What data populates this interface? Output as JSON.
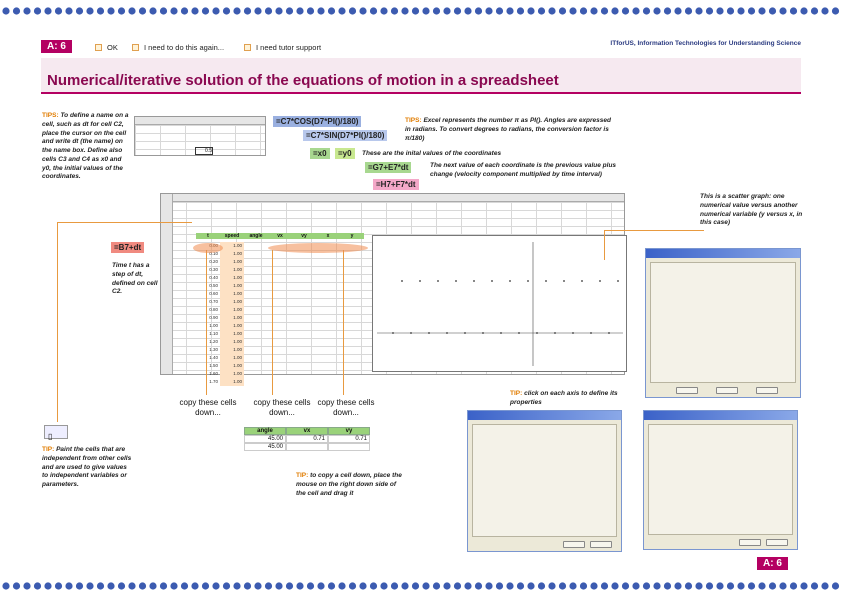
{
  "header": {
    "badge": "A: 6",
    "check_ok": "OK",
    "check_again": "I need to do this again...",
    "check_tutor": "I need tutor support",
    "brand": "ITforUS, Information Technologies for Understanding Science"
  },
  "title": "Numerical/iterative solution of the equations of motion in a spreadsheet",
  "tips": {
    "name_tip_label": "TIPS:",
    "name_tip": "To define a name on a cell, such as dt for cell C2, place the cursor on the cell and write dt (the name) on the name box. Define also cells C3 and C4 as x0 and y0, the initial values of the coordinates.",
    "pi_tip_label": "TIPS:",
    "pi_tip": "Excel represents the number π as PI(). Angles are expressed in radians. To convert degrees to radians, the conversion factor is π/180)",
    "initial_values": "These are the inital values of the coordinates",
    "next_value": "The next value of each coordinate is the previous value plus change (velocity component multiplied by time interval)",
    "time_step": "Time t has a step of dt, defined on cell C2.",
    "scatter": "This is a scatter graph: one numerical value versus another numerical variable (y versus x, in this case)",
    "axis_tip_label": "TIP:",
    "axis_tip": "click on each axis to define its properties",
    "paint_tip_label": "TIP:",
    "paint_tip": "Paint the cells that are independent from other cells and are used to give values to independent variables or parameters.",
    "copy_tip_label": "TIP:",
    "copy_tip": "to copy a cell down, place the mouse on the right down side of the cell and drag it"
  },
  "formulas": {
    "vx": "=C7*COS(D7*PI()/180)",
    "vy": "=C7*SIN(D7*PI()/180)",
    "x0": "=x0",
    "y0": "=y0",
    "x_next": "=G7+E7*dt",
    "y_next": "=H7+F7*dt",
    "t_next": "=B7+dt"
  },
  "copy_labels": {
    "a": "copy these cells down...",
    "b": "copy these cells down...",
    "c": "copy these cells down..."
  },
  "mini_table": {
    "headers": [
      "angle",
      "vx",
      "vy"
    ],
    "rows": [
      [
        "45.00",
        "0.71",
        "0.71"
      ],
      [
        "45.00",
        "",
        ""
      ]
    ]
  },
  "sheet_headers": [
    "t",
    "speed",
    "angle",
    "vx",
    "vy",
    "x",
    "y"
  ],
  "sheet": {
    "t": [
      "0.00",
      "0.10",
      "0.20",
      "0.30",
      "0.40",
      "0.50",
      "0.60",
      "0.70",
      "0.80",
      "0.90",
      "1.00",
      "1.10",
      "1.20",
      "1.30",
      "1.40",
      "1.50",
      "1.60",
      "1.70"
    ],
    "speed": [
      "1.00",
      "1.00",
      "1.00",
      "1.00",
      "1.00",
      "1.00",
      "1.00",
      "1.00",
      "1.00",
      "1.00",
      "1.00",
      "1.00",
      "1.00",
      "1.00",
      "1.00",
      "1.00",
      "1.00",
      "1.00"
    ]
  },
  "colors": {
    "accent": "#b40062",
    "tip": "#e07c00",
    "formula_blue": "#9ab0e0",
    "formula_green": "#a8d890",
    "formula_pink": "#f4a8c8"
  },
  "footer_badge": "A: 6"
}
